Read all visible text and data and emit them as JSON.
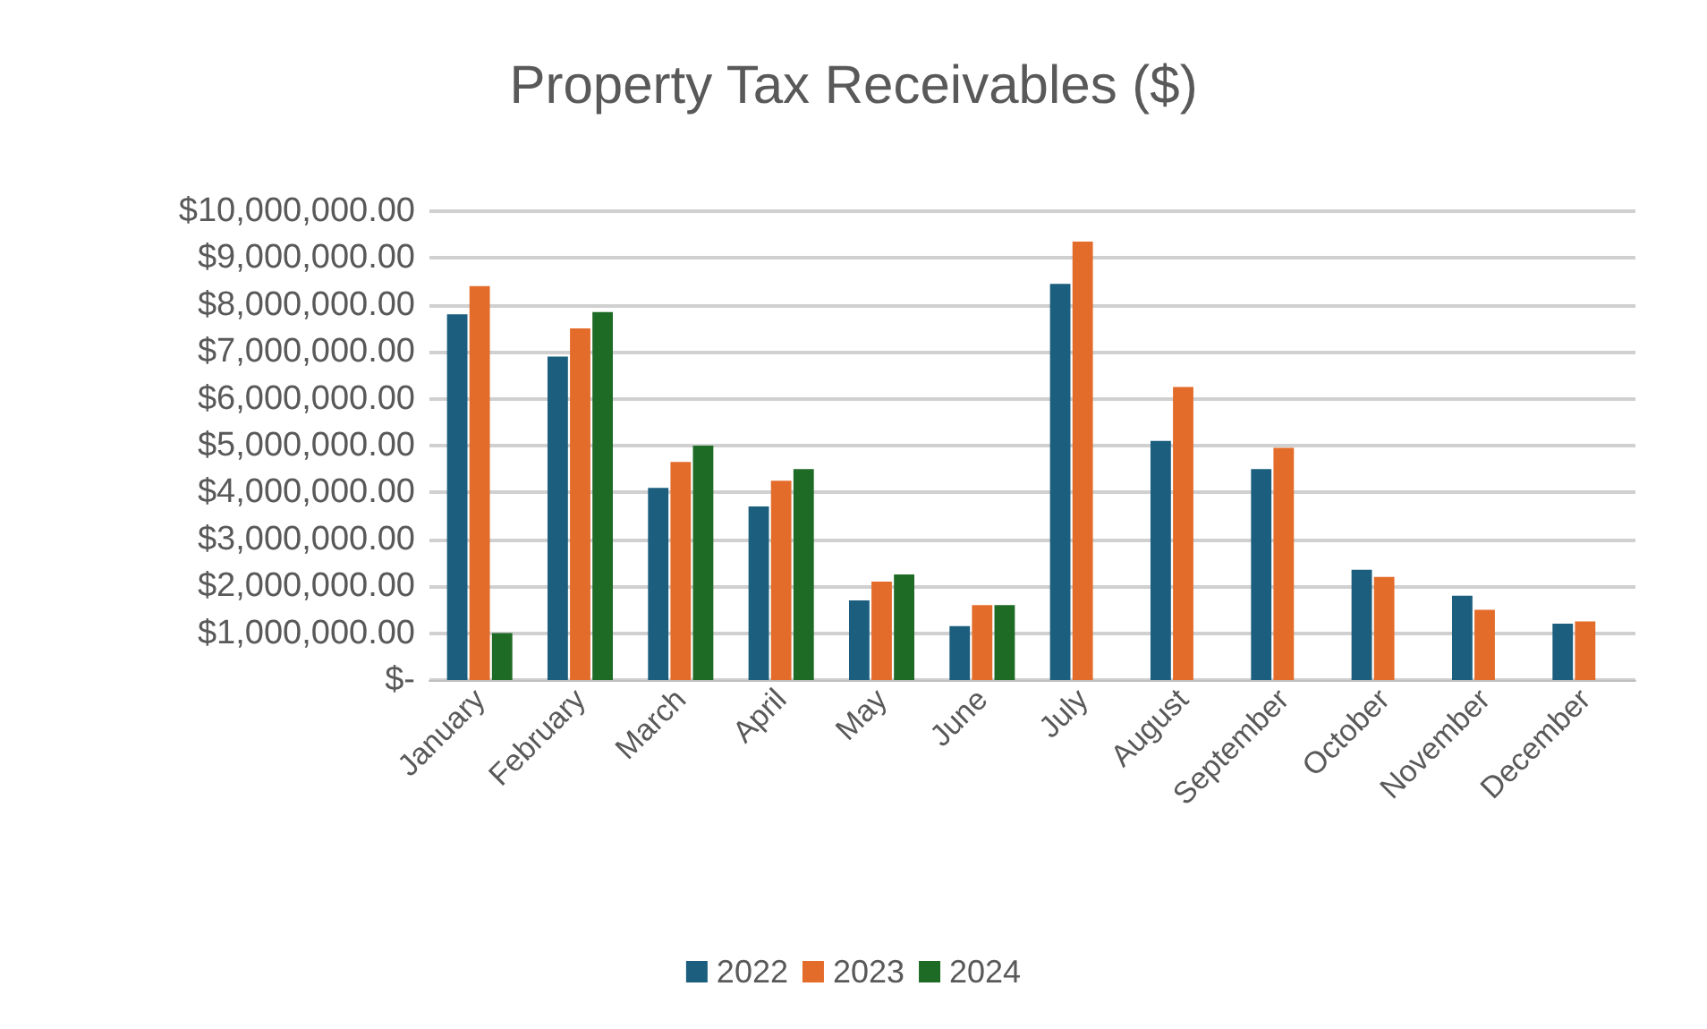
{
  "chart_data": {
    "type": "bar",
    "title": "Property Tax Receivables ($)",
    "categories": [
      "January",
      "February",
      "March",
      "April",
      "May",
      "June",
      "July",
      "August",
      "September",
      "October",
      "November",
      "December"
    ],
    "series": [
      {
        "name": "2022",
        "color": "#1b5e7e",
        "values": [
          7800000,
          6900000,
          4100000,
          3700000,
          1700000,
          1150000,
          8450000,
          5100000,
          4500000,
          2350000,
          1800000,
          1200000
        ]
      },
      {
        "name": "2023",
        "color": "#e46c2b",
        "values": [
          8400000,
          7500000,
          4650000,
          4250000,
          2100000,
          1600000,
          9350000,
          6250000,
          4950000,
          2200000,
          1500000,
          1250000
        ]
      },
      {
        "name": "2024",
        "color": "#1e6b25",
        "values": [
          1000000,
          7850000,
          5000000,
          4500000,
          2250000,
          1600000,
          null,
          null,
          null,
          null,
          null,
          null
        ]
      }
    ],
    "ylim": [
      0,
      10000000
    ],
    "yticks": [
      {
        "value": 0,
        "label": "$-"
      },
      {
        "value": 1000000,
        "label": "$1,000,000.00"
      },
      {
        "value": 2000000,
        "label": "$2,000,000.00"
      },
      {
        "value": 3000000,
        "label": "$3,000,000.00"
      },
      {
        "value": 4000000,
        "label": "$4,000,000.00"
      },
      {
        "value": 5000000,
        "label": "$5,000,000.00"
      },
      {
        "value": 6000000,
        "label": "$6,000,000.00"
      },
      {
        "value": 7000000,
        "label": "$7,000,000.00"
      },
      {
        "value": 8000000,
        "label": "$8,000,000.00"
      },
      {
        "value": 9000000,
        "label": "$9,000,000.00"
      },
      {
        "value": 10000000,
        "label": "$10,000,000.00"
      }
    ],
    "grid": "y",
    "legend": "bottom"
  }
}
